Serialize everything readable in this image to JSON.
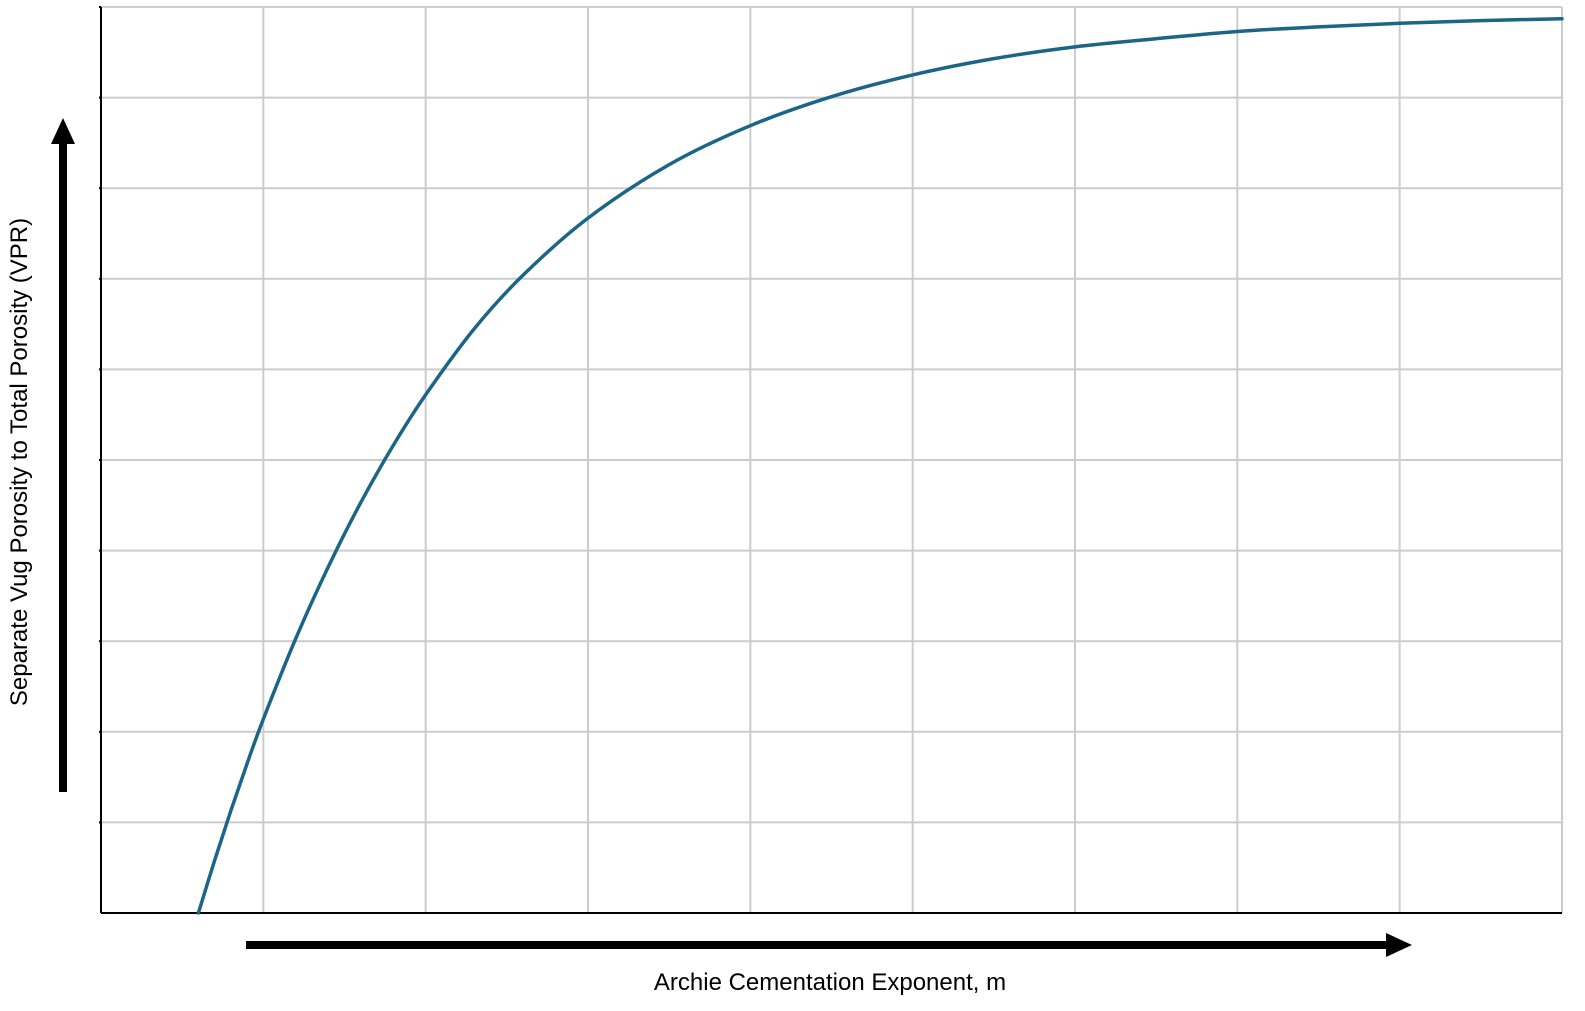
{
  "chart_data": {
    "type": "line",
    "title": "",
    "xlabel": "Archie Cementation Exponent, m",
    "ylabel": "Separate Vug Porosity to Total Porosity (VPR)",
    "xlim": [
      0,
      9
    ],
    "ylim": [
      0,
      10
    ],
    "grid": true,
    "tick_labels_shown": false,
    "axis_arrows": true,
    "colors": {
      "series": "#1b6586",
      "grid": "#cccccc",
      "axis": "#000000",
      "arrow": "#000000"
    },
    "series": [
      {
        "values": {
          "x": [
            0.6,
            0.7,
            0.8,
            0.9,
            1.0,
            1.2,
            1.4,
            1.6,
            1.8,
            2.0,
            2.3,
            2.6,
            3.0,
            3.5,
            4.0,
            4.5,
            5.0,
            5.5,
            6.0,
            6.5,
            7.0,
            7.5,
            8.0,
            8.5,
            9.0
          ],
          "y": [
            0.0,
            0.58,
            1.13,
            1.65,
            2.14,
            3.03,
            3.82,
            4.53,
            5.16,
            5.72,
            6.45,
            7.04,
            7.67,
            8.26,
            8.69,
            9.01,
            9.25,
            9.43,
            9.56,
            9.65,
            9.73,
            9.78,
            9.82,
            9.85,
            9.87
          ]
        }
      }
    ]
  }
}
